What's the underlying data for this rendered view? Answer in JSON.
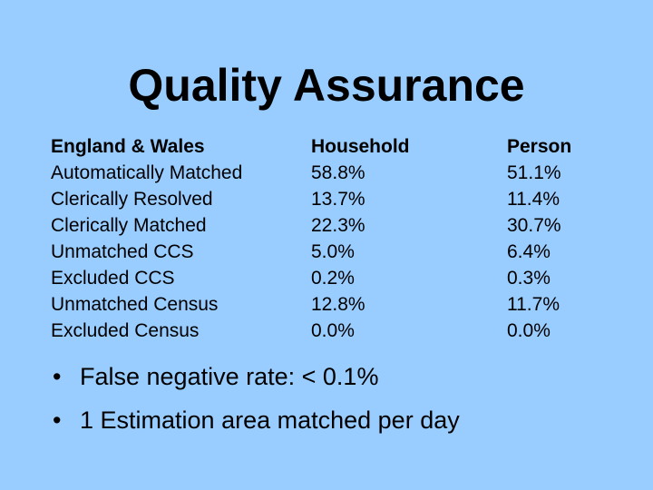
{
  "title": "Quality Assurance",
  "table": {
    "header": [
      "England & Wales",
      "Household",
      "Person"
    ],
    "rows": [
      [
        "Automatically Matched",
        "58.8%",
        "51.1%"
      ],
      [
        "Clerically Resolved",
        "13.7%",
        "11.4%"
      ],
      [
        "Clerically Matched",
        "22.3%",
        "30.7%"
      ],
      [
        "Unmatched CCS",
        "5.0%",
        "6.4%"
      ],
      [
        "Excluded CCS",
        "0.2%",
        "0.3%"
      ],
      [
        "Unmatched Census",
        "12.8%",
        "11.7%"
      ],
      [
        "Excluded Census",
        "0.0%",
        "0.0%"
      ]
    ]
  },
  "bullets": [
    "False negative rate: < 0.1%",
    "1 Estimation area matched per day"
  ]
}
